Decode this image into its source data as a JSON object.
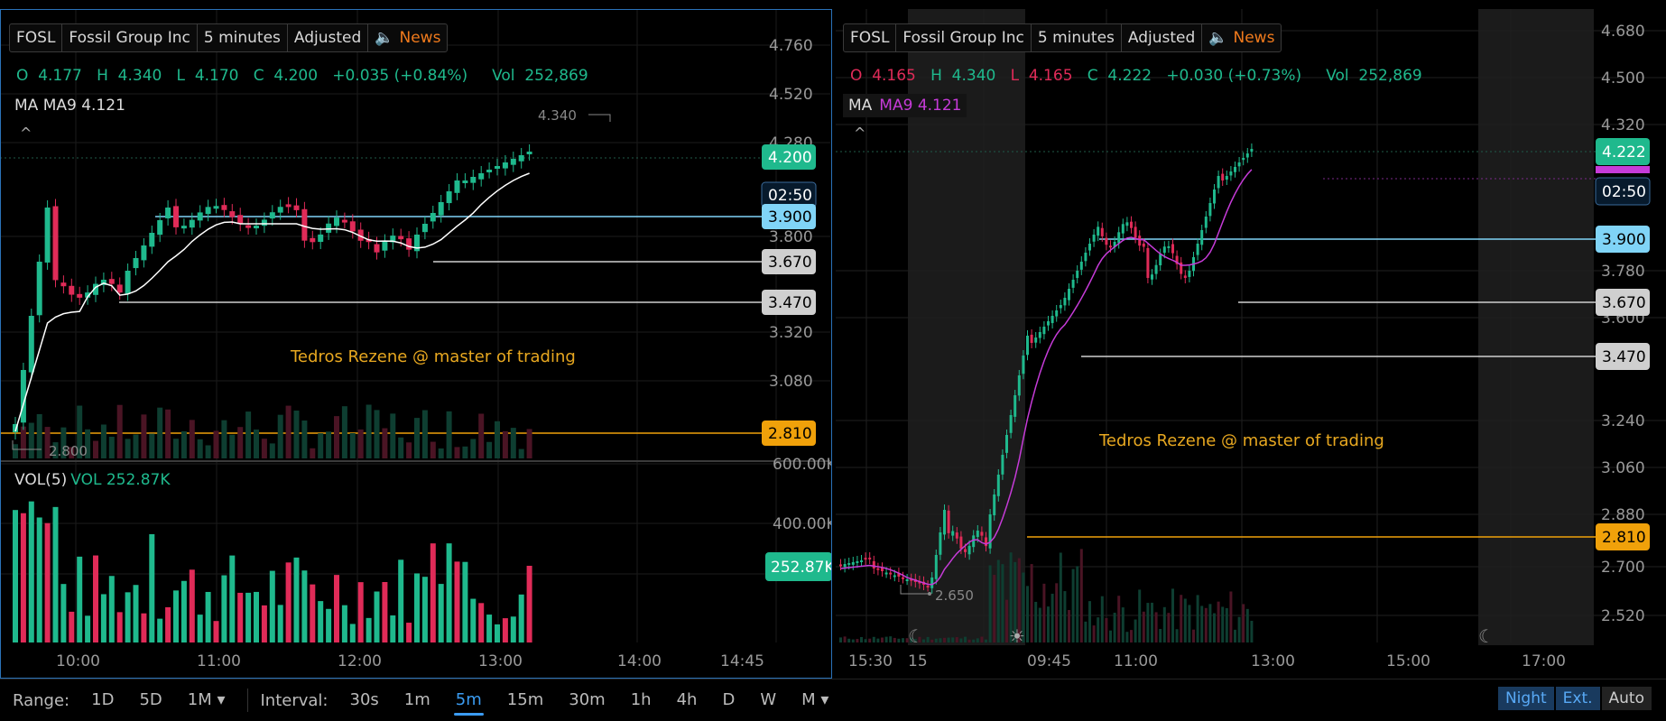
{
  "left": {
    "symbol": "FOSL",
    "company": "Fossil Group Inc",
    "interval": "5 minutes",
    "adjusted": "Adjusted",
    "news": "News",
    "ohlc": "O  4.177   H  4.340   L  4.170   C  4.200   +0.035 (+0.84%)     Vol  252,869",
    "ma_label": "MA  MA9 4.121",
    "vol_label": "VOL(5)",
    "vol_value": "VOL 252.87K",
    "annotation": "Tedros Rezene @ master of trading",
    "high_marker": "4.340",
    "low_marker": "2.800",
    "price_axis": [
      "4.760",
      "4.520",
      "4.280",
      "3.800",
      "3.320",
      "3.080"
    ],
    "vol_axis": [
      "600.00K",
      "400.00K"
    ],
    "price_tags": [
      {
        "text": "4.200",
        "color": "#1fb98d",
        "fg": "#ffffff"
      },
      {
        "text": "02:50",
        "color": "#071a2c",
        "fg": "#ffffff"
      },
      {
        "text": "3.900",
        "color": "#80d4f7",
        "fg": "#000000"
      },
      {
        "text": "3.670",
        "color": "#cfcfcf",
        "fg": "#000000"
      },
      {
        "text": "3.470",
        "color": "#cfcfcf",
        "fg": "#000000"
      },
      {
        "text": "2.810",
        "color": "#f0a10a",
        "fg": "#000000"
      }
    ],
    "vol_tag": "252.87K",
    "time_axis": [
      "10:00",
      "11:00",
      "12:00",
      "13:00",
      "14:00",
      "14:45"
    ],
    "colors": {
      "up": "#1fb98d",
      "down": "#e02b58",
      "ma": "#ffffff"
    }
  },
  "right": {
    "symbol": "FOSL",
    "company": "Fossil Group Inc",
    "interval": "5 minutes",
    "adjusted": "Adjusted",
    "news": "News",
    "ohlc_o": "O  4.165",
    "ohlc_h": "H  4.340",
    "ohlc_l": "L  4.165",
    "ohlc_c": "C  4.222",
    "ohlc_chg": "+0.030 (+0.73%)",
    "ohlc_vol": "Vol  252,869",
    "ma_prefix": "MA",
    "ma_value": "MA9 4.121",
    "annotation": "Tedros Rezene @ master of trading",
    "low_marker": "2.650",
    "price_axis": [
      "4.680",
      "4.500",
      "4.320",
      "3.780",
      "3.600",
      "3.240",
      "3.060",
      "2.880",
      "2.700",
      "2.520"
    ],
    "price_tags": [
      {
        "text": "4.222",
        "color": "#1fb98d",
        "fg": "#ffffff"
      },
      {
        "text": "02:50",
        "color": "#071a2c",
        "fg": "#ffffff"
      },
      {
        "text": "3.900",
        "color": "#80d4f7",
        "fg": "#000000"
      },
      {
        "text": "3.670",
        "color": "#cfcfcf",
        "fg": "#000000"
      },
      {
        "text": "3.470",
        "color": "#cfcfcf",
        "fg": "#000000"
      },
      {
        "text": "2.810",
        "color": "#f0a10a",
        "fg": "#000000"
      }
    ],
    "time_axis": [
      "15:30",
      "15",
      "09:45",
      "11:00",
      "13:00",
      "15:00",
      "17:00"
    ],
    "colors": {
      "up": "#1fb98d",
      "down": "#e02b58",
      "ma": "#c63bd8"
    }
  },
  "bottom": {
    "range_label": "Range:",
    "ranges": [
      "1D",
      "5D",
      "1M ▾"
    ],
    "interval_label": "Interval:",
    "intervals": [
      "30s",
      "1m",
      "5m",
      "15m",
      "30m",
      "1h",
      "4h",
      "D",
      "W",
      "M ▾"
    ],
    "selected_interval": "5m",
    "toggles": [
      "Night",
      "Ext.",
      "Auto"
    ]
  }
}
